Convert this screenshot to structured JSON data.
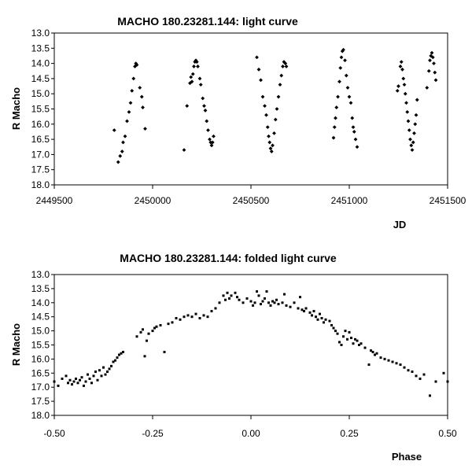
{
  "chart_data": [
    {
      "type": "scatter",
      "title": "MACHO 180.23281.144: light curve",
      "xlabel": "JD",
      "ylabel": "R Macho",
      "xlim": [
        2449500,
        2451500
      ],
      "ylim": [
        13.0,
        18.0
      ],
      "y_inverted": true,
      "x_ticks": [
        "2449500",
        "2450000",
        "2450500",
        "2451000",
        "2451500"
      ],
      "y_ticks": [
        "13.0",
        "13.5",
        "14.0",
        "14.5",
        "15.0",
        "15.5",
        "16.0",
        "16.5",
        "17.0",
        "17.5",
        "18.0"
      ],
      "marker": "diamond",
      "grid": false,
      "legend": "none",
      "points": [
        [
          2449805,
          16.2
        ],
        [
          2449825,
          17.25
        ],
        [
          2449835,
          17.05
        ],
        [
          2449845,
          16.9
        ],
        [
          2449850,
          16.6
        ],
        [
          2449860,
          16.4
        ],
        [
          2449870,
          15.9
        ],
        [
          2449880,
          15.6
        ],
        [
          2449888,
          15.3
        ],
        [
          2449895,
          14.9
        ],
        [
          2449903,
          14.5
        ],
        [
          2449910,
          14.1
        ],
        [
          2449915,
          14.0
        ],
        [
          2449920,
          14.05
        ],
        [
          2449935,
          14.8
        ],
        [
          2449945,
          15.1
        ],
        [
          2449950,
          15.45
        ],
        [
          2449962,
          16.15
        ],
        [
          2450160,
          16.85
        ],
        [
          2450175,
          15.4
        ],
        [
          2450190,
          14.65
        ],
        [
          2450195,
          14.45
        ],
        [
          2450200,
          14.6
        ],
        [
          2450205,
          14.35
        ],
        [
          2450210,
          14.1
        ],
        [
          2450215,
          13.95
        ],
        [
          2450220,
          13.9
        ],
        [
          2450225,
          13.95
        ],
        [
          2450230,
          14.1
        ],
        [
          2450240,
          14.5
        ],
        [
          2450245,
          14.7
        ],
        [
          2450255,
          15.15
        ],
        [
          2450262,
          15.4
        ],
        [
          2450268,
          15.55
        ],
        [
          2450275,
          15.9
        ],
        [
          2450282,
          16.2
        ],
        [
          2450290,
          16.5
        ],
        [
          2450295,
          16.6
        ],
        [
          2450300,
          16.7
        ],
        [
          2450305,
          16.6
        ],
        [
          2450310,
          16.4
        ],
        [
          2450530,
          13.8
        ],
        [
          2450540,
          14.2
        ],
        [
          2450550,
          14.55
        ],
        [
          2450560,
          15.1
        ],
        [
          2450570,
          15.4
        ],
        [
          2450578,
          15.7
        ],
        [
          2450585,
          16.1
        ],
        [
          2450590,
          16.4
        ],
        [
          2450595,
          16.6
        ],
        [
          2450600,
          16.8
        ],
        [
          2450605,
          16.9
        ],
        [
          2450610,
          16.7
        ],
        [
          2450618,
          16.3
        ],
        [
          2450625,
          15.85
        ],
        [
          2450632,
          15.5
        ],
        [
          2450640,
          15.1
        ],
        [
          2450648,
          14.7
        ],
        [
          2450655,
          14.4
        ],
        [
          2450662,
          14.1
        ],
        [
          2450668,
          13.95
        ],
        [
          2450675,
          14.0
        ],
        [
          2450680,
          14.1
        ],
        [
          2450920,
          16.45
        ],
        [
          2450925,
          16.1
        ],
        [
          2450930,
          15.8
        ],
        [
          2450935,
          15.45
        ],
        [
          2450942,
          15.1
        ],
        [
          2450950,
          14.6
        ],
        [
          2450955,
          14.15
        ],
        [
          2450960,
          13.8
        ],
        [
          2450965,
          13.6
        ],
        [
          2450970,
          13.55
        ],
        [
          2450978,
          13.9
        ],
        [
          2450985,
          14.4
        ],
        [
          2450992,
          14.8
        ],
        [
          2451000,
          15.1
        ],
        [
          2451008,
          15.3
        ],
        [
          2451015,
          15.8
        ],
        [
          2451020,
          16.1
        ],
        [
          2451025,
          16.25
        ],
        [
          2451032,
          16.5
        ],
        [
          2451040,
          16.75
        ],
        [
          2451245,
          14.9
        ],
        [
          2451250,
          14.75
        ],
        [
          2451260,
          14.1
        ],
        [
          2451265,
          13.95
        ],
        [
          2451270,
          14.2
        ],
        [
          2451275,
          14.5
        ],
        [
          2451280,
          14.7
        ],
        [
          2451285,
          15.0
        ],
        [
          2451290,
          15.3
        ],
        [
          2451295,
          15.6
        ],
        [
          2451300,
          15.9
        ],
        [
          2451305,
          16.2
        ],
        [
          2451310,
          16.5
        ],
        [
          2451315,
          16.7
        ],
        [
          2451320,
          16.85
        ],
        [
          2451325,
          16.6
        ],
        [
          2451330,
          16.3
        ],
        [
          2451335,
          16.0
        ],
        [
          2451340,
          15.7
        ],
        [
          2451345,
          15.2
        ],
        [
          2451395,
          14.8
        ],
        [
          2451405,
          14.25
        ],
        [
          2451410,
          13.9
        ],
        [
          2451415,
          13.75
        ],
        [
          2451420,
          13.65
        ],
        [
          2451425,
          13.8
        ],
        [
          2451430,
          14.0
        ],
        [
          2451435,
          14.3
        ],
        [
          2451440,
          14.55
        ]
      ]
    },
    {
      "type": "scatter",
      "title": "MACHO 180.23281.144: folded light curve",
      "xlabel": "Phase",
      "ylabel": "R Macho",
      "xlim": [
        -0.5,
        0.5
      ],
      "ylim": [
        13.0,
        18.0
      ],
      "y_inverted": true,
      "x_ticks": [
        "-0.50",
        "-0.25",
        "0.00",
        "0.25",
        "0.50"
      ],
      "y_ticks": [
        "13.0",
        "13.5",
        "14.0",
        "14.5",
        "15.0",
        "15.5",
        "16.0",
        "16.5",
        "17.0",
        "17.5",
        "18.0"
      ],
      "marker": "square",
      "grid": false,
      "legend": "none",
      "points": [
        [
          -0.5,
          16.8
        ],
        [
          -0.49,
          16.95
        ],
        [
          -0.48,
          16.7
        ],
        [
          -0.47,
          16.6
        ],
        [
          -0.465,
          16.85
        ],
        [
          -0.46,
          16.75
        ],
        [
          -0.455,
          16.9
        ],
        [
          -0.45,
          16.8
        ],
        [
          -0.445,
          16.7
        ],
        [
          -0.44,
          16.85
        ],
        [
          -0.435,
          16.75
        ],
        [
          -0.43,
          16.65
        ],
        [
          -0.425,
          16.95
        ],
        [
          -0.42,
          16.8
        ],
        [
          -0.415,
          16.55
        ],
        [
          -0.41,
          16.7
        ],
        [
          -0.405,
          16.85
        ],
        [
          -0.4,
          16.6
        ],
        [
          -0.395,
          16.45
        ],
        [
          -0.39,
          16.75
        ],
        [
          -0.385,
          16.4
        ],
        [
          -0.38,
          16.6
        ],
        [
          -0.375,
          16.3
        ],
        [
          -0.37,
          16.55
        ],
        [
          -0.365,
          16.45
        ],
        [
          -0.36,
          16.35
        ],
        [
          -0.355,
          16.25
        ],
        [
          -0.35,
          16.1
        ],
        [
          -0.345,
          16.05
        ],
        [
          -0.34,
          15.95
        ],
        [
          -0.335,
          15.85
        ],
        [
          -0.33,
          15.8
        ],
        [
          -0.325,
          15.75
        ],
        [
          -0.29,
          15.2
        ],
        [
          -0.28,
          15.05
        ],
        [
          -0.275,
          14.95
        ],
        [
          -0.27,
          15.9
        ],
        [
          -0.265,
          15.35
        ],
        [
          -0.26,
          15.1
        ],
        [
          -0.25,
          15.0
        ],
        [
          -0.245,
          14.9
        ],
        [
          -0.24,
          14.85
        ],
        [
          -0.23,
          14.8
        ],
        [
          -0.22,
          15.75
        ],
        [
          -0.21,
          14.75
        ],
        [
          -0.2,
          14.7
        ],
        [
          -0.19,
          14.55
        ],
        [
          -0.18,
          14.6
        ],
        [
          -0.17,
          14.5
        ],
        [
          -0.16,
          14.45
        ],
        [
          -0.15,
          14.5
        ],
        [
          -0.14,
          14.4
        ],
        [
          -0.13,
          14.55
        ],
        [
          -0.12,
          14.45
        ],
        [
          -0.11,
          14.5
        ],
        [
          -0.1,
          14.3
        ],
        [
          -0.09,
          14.2
        ],
        [
          -0.08,
          14.0
        ],
        [
          -0.07,
          13.75
        ],
        [
          -0.065,
          13.9
        ],
        [
          -0.06,
          13.65
        ],
        [
          -0.055,
          13.85
        ],
        [
          -0.05,
          13.75
        ],
        [
          -0.04,
          13.65
        ],
        [
          -0.035,
          13.8
        ],
        [
          -0.03,
          13.9
        ],
        [
          -0.02,
          14.0
        ],
        [
          -0.01,
          13.85
        ],
        [
          0.0,
          13.95
        ],
        [
          0.005,
          14.1
        ],
        [
          0.01,
          14.0
        ],
        [
          0.015,
          13.6
        ],
        [
          0.02,
          13.75
        ],
        [
          0.025,
          14.05
        ],
        [
          0.03,
          13.95
        ],
        [
          0.035,
          13.85
        ],
        [
          0.04,
          13.6
        ],
        [
          0.045,
          14.0
        ],
        [
          0.05,
          14.1
        ],
        [
          0.055,
          13.95
        ],
        [
          0.06,
          14.0
        ],
        [
          0.065,
          13.9
        ],
        [
          0.07,
          14.05
        ],
        [
          0.08,
          14.0
        ],
        [
          0.085,
          13.7
        ],
        [
          0.09,
          14.1
        ],
        [
          0.1,
          14.15
        ],
        [
          0.11,
          14.0
        ],
        [
          0.12,
          14.2
        ],
        [
          0.125,
          13.8
        ],
        [
          0.13,
          14.25
        ],
        [
          0.135,
          14.3
        ],
        [
          0.14,
          14.2
        ],
        [
          0.15,
          14.35
        ],
        [
          0.155,
          14.45
        ],
        [
          0.16,
          14.3
        ],
        [
          0.165,
          14.5
        ],
        [
          0.17,
          14.6
        ],
        [
          0.175,
          14.4
        ],
        [
          0.18,
          14.55
        ],
        [
          0.185,
          14.7
        ],
        [
          0.19,
          14.6
        ],
        [
          0.2,
          14.65
        ],
        [
          0.205,
          14.8
        ],
        [
          0.21,
          14.9
        ],
        [
          0.215,
          15.0
        ],
        [
          0.22,
          15.1
        ],
        [
          0.225,
          15.4
        ],
        [
          0.23,
          15.5
        ],
        [
          0.235,
          15.2
        ],
        [
          0.24,
          15.0
        ],
        [
          0.245,
          15.3
        ],
        [
          0.25,
          15.05
        ],
        [
          0.255,
          15.25
        ],
        [
          0.26,
          15.45
        ],
        [
          0.265,
          15.3
        ],
        [
          0.27,
          15.35
        ],
        [
          0.275,
          15.5
        ],
        [
          0.28,
          15.45
        ],
        [
          0.29,
          15.6
        ],
        [
          0.3,
          16.2
        ],
        [
          0.305,
          15.7
        ],
        [
          0.31,
          15.75
        ],
        [
          0.315,
          15.85
        ],
        [
          0.32,
          15.8
        ],
        [
          0.33,
          15.95
        ],
        [
          0.34,
          16.0
        ],
        [
          0.35,
          16.05
        ],
        [
          0.36,
          16.1
        ],
        [
          0.37,
          16.15
        ],
        [
          0.38,
          16.2
        ],
        [
          0.39,
          16.3
        ],
        [
          0.4,
          16.4
        ],
        [
          0.41,
          16.45
        ],
        [
          0.42,
          16.6
        ],
        [
          0.43,
          16.7
        ],
        [
          0.44,
          16.55
        ],
        [
          0.455,
          17.3
        ],
        [
          0.47,
          16.8
        ],
        [
          0.49,
          16.5
        ],
        [
          0.5,
          16.8
        ]
      ]
    }
  ]
}
